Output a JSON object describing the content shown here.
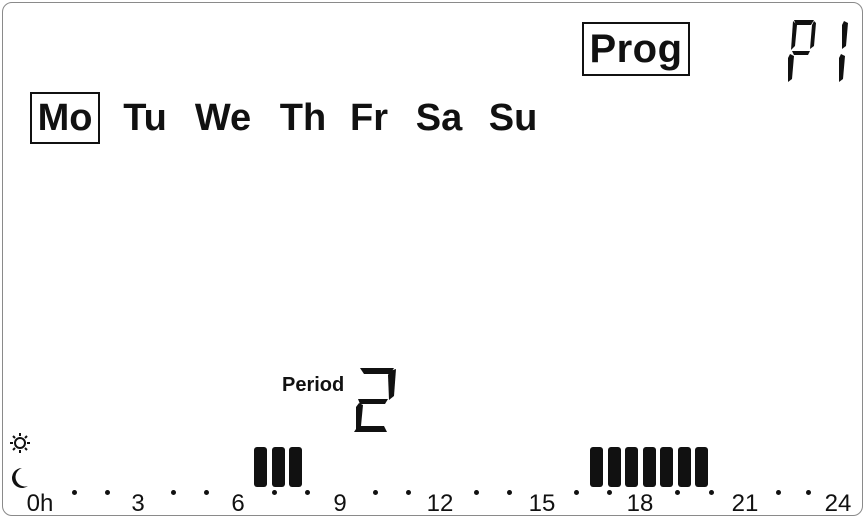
{
  "display": {
    "mode_label": "Prog",
    "program_text": "P1",
    "days": [
      {
        "label": "Mo",
        "active": true
      },
      {
        "label": "Tu",
        "active": false
      },
      {
        "label": "We",
        "active": false
      },
      {
        "label": "Th",
        "active": false
      },
      {
        "label": "Fr",
        "active": false
      },
      {
        "label": "Sa",
        "active": false
      },
      {
        "label": "Su",
        "active": false
      }
    ],
    "period_label": "Period",
    "period_value": "2",
    "timeline": {
      "labels": [
        "0h",
        "3",
        "6",
        "9",
        "12",
        "15",
        "18",
        "21",
        "24"
      ],
      "active_intervals_h": [
        [
          6.5,
          8.0
        ],
        [
          16.5,
          20.5
        ]
      ]
    },
    "icons": {
      "comfort": "sun-icon",
      "eco": "moon-icon"
    }
  }
}
